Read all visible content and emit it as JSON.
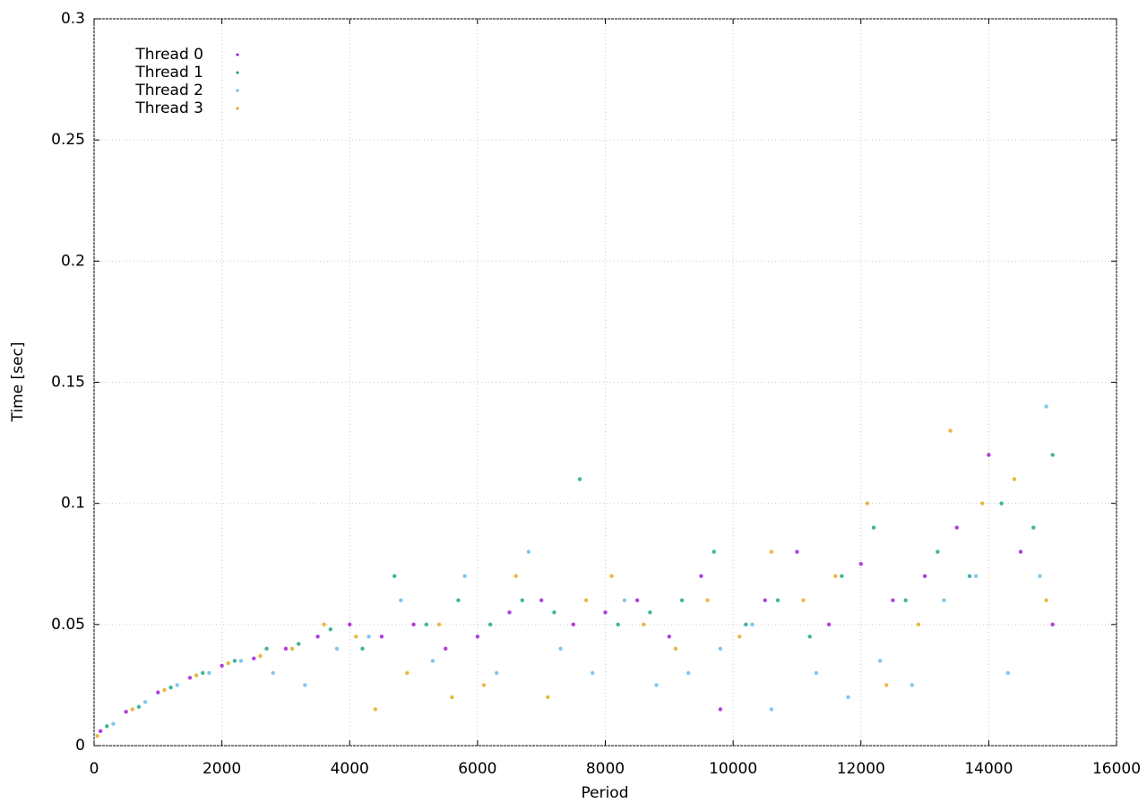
{
  "chart_data": {
    "type": "scatter",
    "xlabel": "Period",
    "ylabel": "Time [sec]",
    "xlim": [
      0,
      16000
    ],
    "xticks": [
      0,
      2000,
      4000,
      6000,
      8000,
      10000,
      12000,
      14000,
      16000
    ],
    "ylim": [
      0,
      0.3
    ],
    "yticks": [
      0,
      0.05,
      0.1,
      0.15,
      0.2,
      0.25,
      0.3
    ],
    "grid": true,
    "legend": "top-left",
    "series": [
      {
        "name": "Thread 0",
        "color": "#9400d3",
        "x": [
          100,
          500,
          1000,
          1500,
          2000,
          2500,
          3000,
          3500,
          4000,
          4500,
          5000,
          5500,
          6000,
          6500,
          7000,
          7500,
          8000,
          8500,
          9000,
          9500,
          9800,
          10500,
          11000,
          11500,
          12000,
          12500,
          13000,
          13500,
          14000,
          14500,
          15000
        ],
        "values": [
          0.006,
          0.014,
          0.022,
          0.028,
          0.033,
          0.036,
          0.04,
          0.045,
          0.05,
          0.045,
          0.05,
          0.04,
          0.045,
          0.055,
          0.06,
          0.05,
          0.055,
          0.06,
          0.045,
          0.07,
          0.015,
          0.06,
          0.08,
          0.05,
          0.075,
          0.06,
          0.07,
          0.09,
          0.12,
          0.08,
          0.05
        ]
      },
      {
        "name": "Thread 1",
        "color": "#009e73",
        "x": [
          200,
          700,
          1200,
          1700,
          2200,
          2700,
          3200,
          3700,
          4200,
          4700,
          5200,
          5700,
          6200,
          6700,
          7200,
          7600,
          8200,
          8700,
          9200,
          9700,
          10200,
          10700,
          11200,
          11700,
          12200,
          12700,
          13200,
          13700,
          14200,
          14700,
          15000
        ],
        "values": [
          0.008,
          0.016,
          0.024,
          0.03,
          0.035,
          0.04,
          0.042,
          0.048,
          0.04,
          0.07,
          0.05,
          0.06,
          0.05,
          0.06,
          0.055,
          0.11,
          0.05,
          0.055,
          0.06,
          0.08,
          0.05,
          0.06,
          0.045,
          0.07,
          0.09,
          0.06,
          0.08,
          0.07,
          0.1,
          0.09,
          0.12
        ]
      },
      {
        "name": "Thread 2",
        "color": "#56b4e9",
        "x": [
          300,
          800,
          1300,
          1800,
          2300,
          2800,
          3300,
          3800,
          4300,
          4800,
          5300,
          5800,
          6300,
          6800,
          7300,
          7800,
          8300,
          8800,
          9300,
          9800,
          10300,
          10600,
          11300,
          11800,
          12300,
          12800,
          13300,
          13800,
          14300,
          14800,
          14900
        ],
        "values": [
          0.009,
          0.018,
          0.025,
          0.03,
          0.035,
          0.03,
          0.025,
          0.04,
          0.045,
          0.06,
          0.035,
          0.07,
          0.03,
          0.08,
          0.04,
          0.03,
          0.06,
          0.025,
          0.03,
          0.04,
          0.05,
          0.015,
          0.03,
          0.02,
          0.035,
          0.025,
          0.06,
          0.07,
          0.03,
          0.07,
          0.14
        ]
      },
      {
        "name": "Thread 3",
        "color": "#e69f00",
        "x": [
          50,
          600,
          1100,
          1600,
          2100,
          2600,
          3100,
          3600,
          4100,
          4400,
          4900,
          5400,
          5600,
          6100,
          6600,
          7100,
          7700,
          8100,
          8600,
          9100,
          9600,
          10100,
          10600,
          11100,
          11600,
          12100,
          12400,
          12900,
          13400,
          13900,
          14400,
          14900
        ],
        "values": [
          0.004,
          0.015,
          0.023,
          0.029,
          0.034,
          0.037,
          0.04,
          0.05,
          0.045,
          0.015,
          0.03,
          0.05,
          0.02,
          0.025,
          0.07,
          0.02,
          0.06,
          0.07,
          0.05,
          0.04,
          0.06,
          0.045,
          0.08,
          0.06,
          0.07,
          0.1,
          0.025,
          0.05,
          0.13,
          0.1,
          0.11,
          0.06
        ]
      }
    ]
  }
}
